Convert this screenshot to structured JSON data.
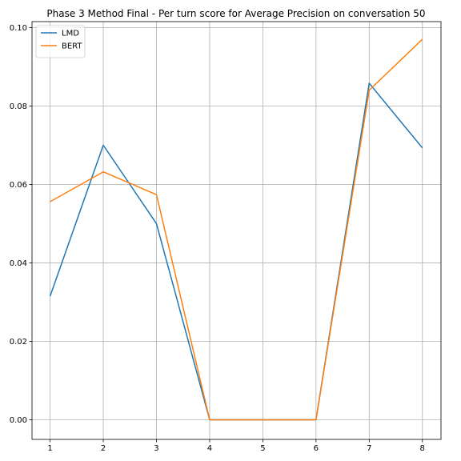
{
  "chart_data": {
    "type": "line",
    "title": "Phase 3 Method Final - Per turn score for Average Precision on conversation 50",
    "xlabel": "",
    "ylabel": "",
    "x": [
      1,
      2,
      3,
      4,
      5,
      6,
      7,
      8
    ],
    "xlim": [
      0.66,
      8.35
    ],
    "ylim": [
      -0.005,
      0.1015
    ],
    "xticks": [
      1,
      2,
      3,
      4,
      5,
      6,
      7,
      8
    ],
    "yticks": [
      0.0,
      0.02,
      0.04,
      0.06,
      0.08,
      0.1
    ],
    "ytick_labels": [
      "0.00",
      "0.02",
      "0.04",
      "0.06",
      "0.08",
      "0.10"
    ],
    "grid": true,
    "legend_position": "top-left",
    "series": [
      {
        "name": "LMD",
        "color": "#1f77b4",
        "values": [
          0.0315,
          0.07,
          0.05,
          0.0,
          0.0,
          0.0,
          0.0858,
          0.0693
        ]
      },
      {
        "name": "BERT",
        "color": "#ff7f0e",
        "values": [
          0.0556,
          0.0632,
          0.0574,
          0.0,
          0.0,
          0.0,
          0.084,
          0.097
        ]
      }
    ]
  }
}
